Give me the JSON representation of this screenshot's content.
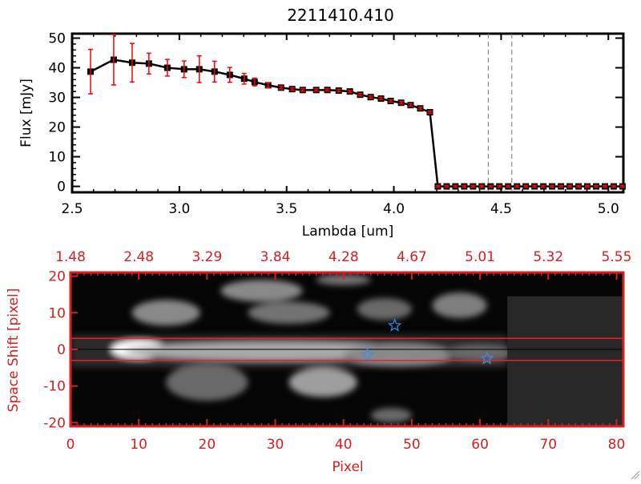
{
  "chart_data": [
    {
      "type": "line",
      "title": "2211410.410",
      "xlabel": "Lambda [um]",
      "ylabel": "Flux [mJy]",
      "xlim": [
        2.5,
        5.07
      ],
      "ylim": [
        -2,
        51.5
      ],
      "xticks": [
        "2.5",
        "3.0",
        "3.5",
        "4.0",
        "4.5",
        "5.0"
      ],
      "xtick_values": [
        2.5,
        3.0,
        3.5,
        4.0,
        4.5,
        5.0
      ],
      "yticks": [
        "0",
        "10",
        "20",
        "30",
        "40",
        "50"
      ],
      "ytick_values": [
        0,
        10,
        20,
        30,
        40,
        50
      ],
      "series": [
        {
          "name": "flux",
          "x": [
            2.586,
            2.694,
            2.78,
            2.858,
            2.944,
            3.022,
            3.093,
            3.164,
            3.235,
            3.302,
            3.351,
            3.414,
            3.474,
            3.526,
            3.575,
            3.638,
            3.69,
            3.743,
            3.795,
            3.843,
            3.892,
            3.94,
            3.985,
            4.034,
            4.078,
            4.123,
            4.168,
            4.205,
            4.246,
            4.287,
            4.328,
            4.369,
            4.41,
            4.451,
            4.492,
            4.533,
            4.574,
            4.615,
            4.656,
            4.697,
            4.738,
            4.779,
            4.82,
            4.861,
            4.902,
            4.943,
            4.984,
            5.025,
            5.066
          ],
          "y": [
            38.7,
            42.7,
            41.7,
            41.4,
            40.0,
            39.5,
            39.5,
            38.7,
            37.6,
            36.3,
            35.2,
            34.1,
            33.3,
            32.8,
            32.5,
            32.5,
            32.5,
            32.3,
            32.0,
            30.9,
            30.1,
            29.6,
            28.8,
            28.2,
            27.4,
            26.3,
            25.0,
            0,
            0,
            0,
            0,
            0,
            0,
            0,
            0,
            0,
            0,
            0,
            0,
            0,
            0,
            0,
            0,
            0,
            0,
            0,
            0,
            0,
            0
          ],
          "err": [
            7.5,
            8.5,
            6.5,
            3.5,
            2.8,
            2.8,
            4.5,
            3.5,
            2.5,
            1.8,
            1.3,
            0.8,
            0.5,
            0.4,
            0.4,
            0.4,
            0.4,
            0.4,
            0.4,
            0.4,
            0.4,
            0.4,
            0.4,
            0.4,
            0.4,
            0.4,
            0.4,
            0.3,
            0.3,
            0.3,
            0.3,
            0.3,
            0.3,
            0.3,
            0.3,
            0.3,
            0.3,
            0.3,
            0.3,
            0.3,
            0.3,
            0.3,
            0.3,
            0.3,
            0.3,
            0.3,
            0.3,
            0.3,
            0.3
          ]
        }
      ],
      "vlines_dashed": [
        4.44,
        4.55
      ],
      "colors": {
        "line": "#000000",
        "errorbar": "#ff0000",
        "marker": "#000000"
      }
    },
    {
      "type": "heatmap",
      "xlabel": "Pixel",
      "ylabel": "Space Shift [pixel]",
      "xlim": [
        0,
        81
      ],
      "ylim": [
        -21,
        21
      ],
      "xticks": [
        "0",
        "10",
        "20",
        "30",
        "40",
        "50",
        "60",
        "70",
        "80"
      ],
      "xtick_values": [
        0,
        10,
        20,
        30,
        40,
        50,
        60,
        70,
        80
      ],
      "yticks": [
        "20",
        "10",
        "0",
        "-10",
        "-20"
      ],
      "ytick_values": [
        20,
        10,
        0,
        -10,
        -20
      ],
      "top_ticks": [
        "1.48",
        "2.48",
        "3.29",
        "3.84",
        "4.28",
        "4.67",
        "5.01",
        "5.32",
        "5.55"
      ],
      "hlines_red": [
        3,
        -3
      ],
      "hline_black": 0,
      "data_edge_pixel": 64,
      "features": [
        {
          "x": 10,
          "y": 0,
          "rx": 4,
          "ry": 2.5,
          "level": 1.0
        },
        {
          "x": 30,
          "y": -0.5,
          "rx": 22,
          "ry": 2.5,
          "level": 0.6
        },
        {
          "x": 48,
          "y": -1.5,
          "rx": 8,
          "ry": 3,
          "level": 0.45
        },
        {
          "x": 60,
          "y": -1,
          "rx": 5,
          "ry": 2,
          "level": 0.3
        },
        {
          "x": 37,
          "y": -9,
          "rx": 5,
          "ry": 4,
          "level": 0.55
        },
        {
          "x": 14,
          "y": 10,
          "rx": 5,
          "ry": 3.5,
          "level": 0.45
        },
        {
          "x": 28,
          "y": 16,
          "rx": 6,
          "ry": 3,
          "level": 0.45
        },
        {
          "x": 32,
          "y": 10,
          "rx": 6,
          "ry": 3,
          "level": 0.35
        },
        {
          "x": 57,
          "y": 12,
          "rx": 4,
          "ry": 3.5,
          "level": 0.4
        },
        {
          "x": 46,
          "y": 11,
          "rx": 4,
          "ry": 3,
          "level": 0.3
        },
        {
          "x": 20,
          "y": -9,
          "rx": 6,
          "ry": 5,
          "level": 0.3
        },
        {
          "x": 47,
          "y": -18,
          "rx": 3,
          "ry": 2,
          "level": 0.3
        },
        {
          "x": 40,
          "y": 19,
          "rx": 4,
          "ry": 1.5,
          "level": 0.35
        }
      ],
      "stars": [
        {
          "x": 47.5,
          "y": 6.5
        },
        {
          "x": 43.5,
          "y": -1.5
        },
        {
          "x": 61,
          "y": -2.5
        }
      ],
      "colors": {
        "axes": "#d42020",
        "star": "#3a8ee6",
        "masked": "#282828"
      }
    }
  ]
}
